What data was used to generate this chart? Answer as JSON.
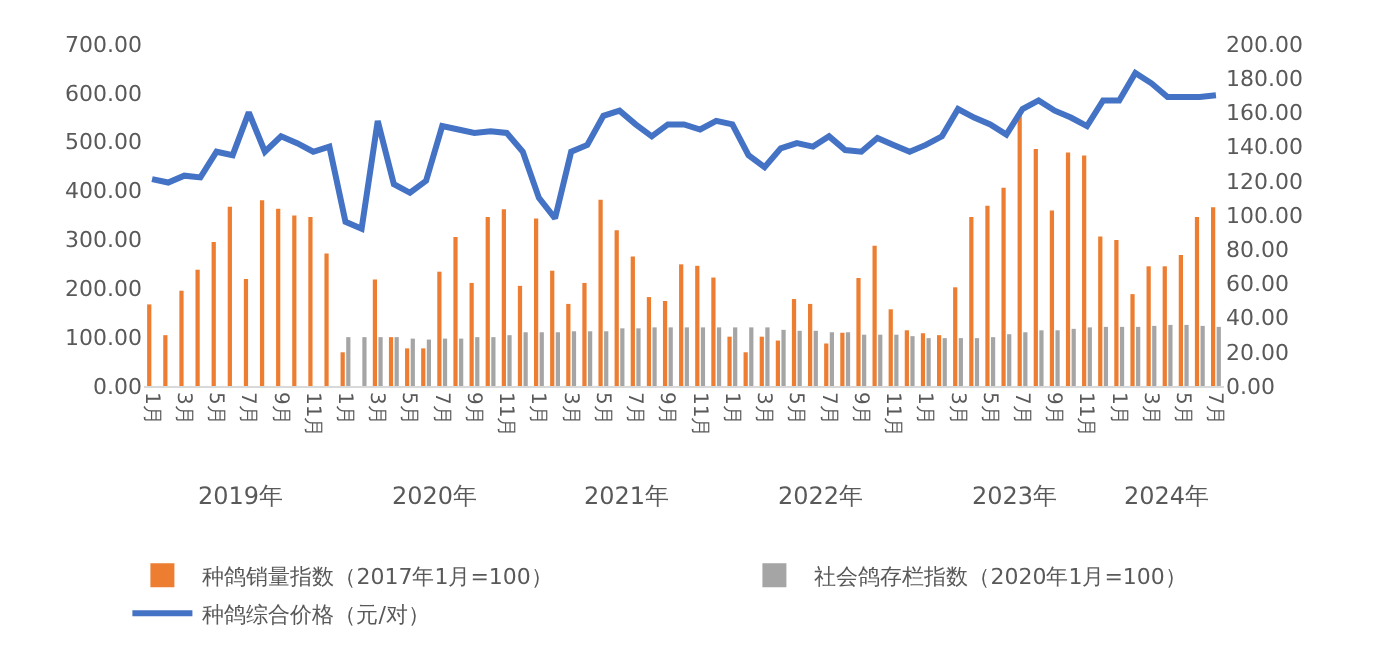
{
  "chart_data": {
    "type": "bar",
    "categories": [
      "1月",
      null,
      "3月",
      null,
      "5月",
      null,
      "7月",
      null,
      "9月",
      null,
      "11月",
      null,
      "1月",
      null,
      "3月",
      null,
      "5月",
      null,
      "7月",
      null,
      "9月",
      null,
      "11月",
      null,
      "1月",
      null,
      "3月",
      null,
      "5月",
      null,
      "7月",
      null,
      "9月",
      null,
      "11月",
      null,
      "1月",
      null,
      "3月",
      null,
      "5月",
      null,
      "7月",
      null,
      "9月",
      null,
      "11月",
      null,
      "1月",
      null,
      "3月",
      null,
      "5月",
      null,
      "7月",
      null,
      "9月",
      null,
      "11月",
      null,
      "1月",
      null,
      "3月",
      null,
      "5月",
      null,
      "7月"
    ],
    "series": [
      {
        "name": "种鸽销量指数（2017年1月=100）",
        "color": "#ed7d31",
        "values": [
          167,
          104,
          195,
          238,
          295,
          367,
          219,
          380,
          363,
          349,
          346,
          271,
          69,
          null,
          218,
          100,
          77,
          77,
          234,
          305,
          211,
          346,
          362,
          205,
          343,
          236,
          168,
          211,
          381,
          319,
          265,
          182,
          174,
          249,
          246,
          222,
          101,
          69,
          101,
          93,
          178,
          168,
          87,
          109,
          221,
          287,
          157,
          114,
          108,
          104,
          202,
          346,
          369,
          406,
          560,
          485,
          359,
          478,
          472,
          306,
          299,
          188,
          245,
          245,
          268,
          346,
          366
        ]
      },
      {
        "name": "社会鸽存栏指数（2020年1月=100）",
        "color": "#a5a5a5",
        "values": [
          null,
          null,
          null,
          null,
          null,
          null,
          null,
          null,
          null,
          null,
          null,
          null,
          100,
          100,
          100,
          100,
          97,
          95,
          97,
          97,
          100,
          100,
          104,
          110,
          110,
          110,
          112,
          112,
          112,
          118,
          118,
          120,
          120,
          120,
          120,
          120,
          120,
          120,
          120,
          115,
          113,
          113,
          110,
          110,
          105,
          105,
          105,
          102,
          98,
          98,
          98,
          98,
          100,
          106,
          110,
          114,
          114,
          117,
          120,
          121,
          121,
          121,
          123,
          125,
          125,
          123,
          121
        ]
      },
      {
        "name": "种鸽综合价格（元/对）",
        "type": "line",
        "axis": "y2",
        "color": "#4472c4",
        "values": [
          121,
          119,
          123,
          122,
          137,
          135,
          160,
          137,
          146,
          142,
          137,
          140,
          96,
          92,
          155,
          118,
          113,
          120,
          152,
          150,
          148,
          149,
          148,
          137,
          110,
          98,
          137,
          141,
          158,
          161,
          153,
          146,
          153,
          153,
          150,
          155,
          153,
          135,
          128,
          139,
          142,
          140,
          146,
          138,
          137,
          145,
          141,
          137,
          141,
          146,
          162,
          157,
          153,
          147,
          162,
          167,
          161,
          157,
          152,
          167,
          167,
          183,
          177,
          169,
          169,
          169,
          170
        ]
      }
    ],
    "ylim": [
      0,
      700
    ],
    "yticks": [
      {
        "value": 0,
        "label": "0.00"
      },
      {
        "value": 100,
        "label": "100.00"
      },
      {
        "value": 200,
        "label": "200.00"
      },
      {
        "value": 300,
        "label": "300.00"
      },
      {
        "value": 400,
        "label": "400.00"
      },
      {
        "value": 500,
        "label": "500.00"
      },
      {
        "value": 600,
        "label": "600.00"
      },
      {
        "value": 700,
        "label": "700.00"
      }
    ],
    "y2lim": [
      0,
      200
    ],
    "y2ticks": [
      {
        "value": 0,
        "label": "0.00"
      },
      {
        "value": 20,
        "label": "20.00"
      },
      {
        "value": 40,
        "label": "40.00"
      },
      {
        "value": 60,
        "label": "60.00"
      },
      {
        "value": 80,
        "label": "80.00"
      },
      {
        "value": 100,
        "label": "100.00"
      },
      {
        "value": 120,
        "label": "120.00"
      },
      {
        "value": 140,
        "label": "140.00"
      },
      {
        "value": 160,
        "label": "160.00"
      },
      {
        "value": 180,
        "label": "180.00"
      },
      {
        "value": 200,
        "label": "200.00"
      }
    ],
    "annotations": [
      "2019年",
      "2020年",
      "2021年",
      "2022年",
      "2023年",
      "2024年"
    ],
    "legend": "bottom"
  }
}
